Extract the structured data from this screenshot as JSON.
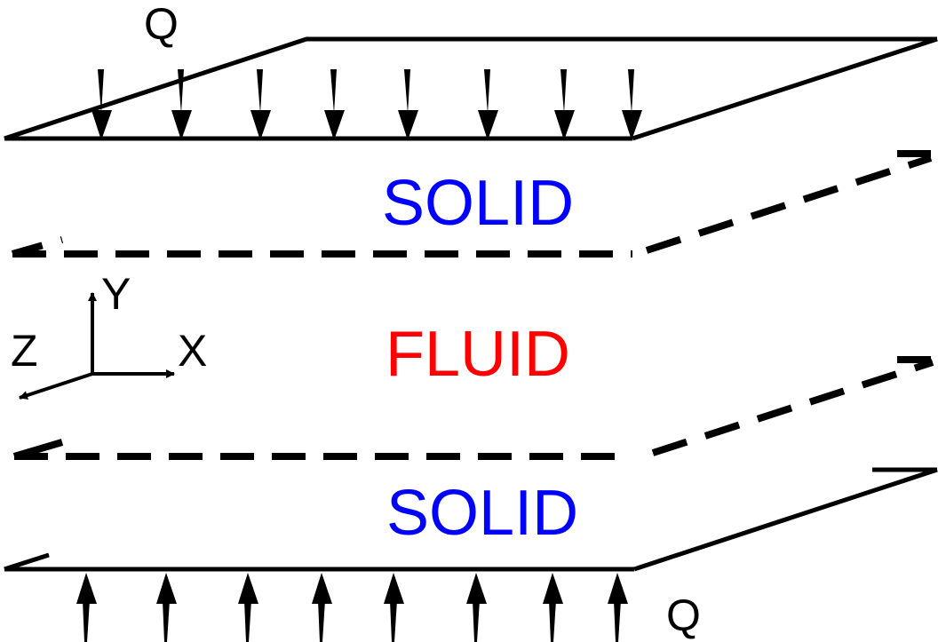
{
  "labels": {
    "heat_flux_top": "Q",
    "heat_flux_bottom": "Q",
    "solid_top": "SOLID",
    "fluid": "FLUID",
    "solid_bottom": "SOLID"
  },
  "axes": {
    "x": "X",
    "y": "Y",
    "z": "Z"
  },
  "colors": {
    "solid": "#0000ff",
    "fluid": "#ff0000",
    "lines": "#000000"
  }
}
